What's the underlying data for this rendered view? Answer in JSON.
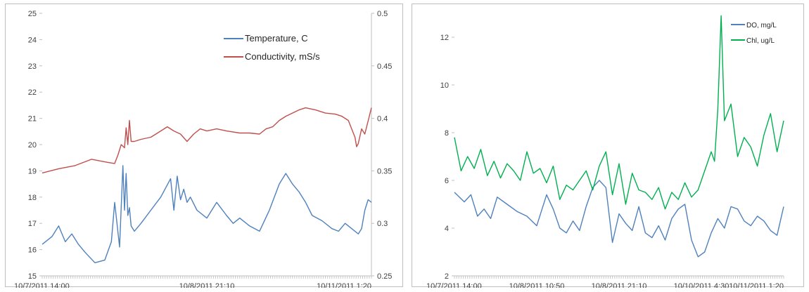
{
  "chart_data": [
    {
      "type": "line",
      "title": "",
      "xlabel": "",
      "ylabel": "",
      "x_tick_labels": [
        "10/7/2011 14:00",
        "10/8/2011 21:10",
        "10/11/2011 1:20"
      ],
      "ylim": [
        15,
        25
      ],
      "yticks": [
        "15",
        "16",
        "17",
        "18",
        "19",
        "20",
        "21",
        "22",
        "23",
        "24",
        "25"
      ],
      "y2lim": [
        0.25,
        0.5
      ],
      "y2ticks": [
        "0.25",
        "0.3",
        "0.35",
        "0.4",
        "0.45",
        "0.5"
      ],
      "legend": "top-right",
      "grid": false,
      "series": [
        {
          "name": "Temperature, C",
          "axis": "left",
          "color": "#4f81bd",
          "x": [
            0,
            0.03,
            0.05,
            0.07,
            0.09,
            0.11,
            0.13,
            0.16,
            0.19,
            0.21,
            0.22,
            0.235,
            0.245,
            0.25,
            0.255,
            0.26,
            0.265,
            0.27,
            0.28,
            0.3,
            0.33,
            0.36,
            0.39,
            0.4,
            0.41,
            0.42,
            0.43,
            0.44,
            0.45,
            0.47,
            0.5,
            0.53,
            0.56,
            0.58,
            0.6,
            0.63,
            0.66,
            0.69,
            0.72,
            0.74,
            0.76,
            0.78,
            0.8,
            0.82,
            0.85,
            0.88,
            0.9,
            0.92,
            0.94,
            0.96,
            0.97,
            0.98,
            0.99,
            1.0
          ],
          "values": [
            16.2,
            16.5,
            16.9,
            16.3,
            16.6,
            16.2,
            15.9,
            15.5,
            15.6,
            16.3,
            17.8,
            16.1,
            19.2,
            17.5,
            18.9,
            17.3,
            17.6,
            16.9,
            16.7,
            17.0,
            17.5,
            18.0,
            18.7,
            17.5,
            18.8,
            17.9,
            18.3,
            17.8,
            18.0,
            17.5,
            17.2,
            17.8,
            17.3,
            17.0,
            17.2,
            16.9,
            16.7,
            17.5,
            18.5,
            18.9,
            18.5,
            18.2,
            17.8,
            17.3,
            17.1,
            16.8,
            16.7,
            17.0,
            16.8,
            16.6,
            16.8,
            17.5,
            17.9,
            17.8
          ]
        },
        {
          "name": "Conductivity, mS/s",
          "axis": "right",
          "color": "#c0504d",
          "x": [
            0,
            0.05,
            0.1,
            0.15,
            0.2,
            0.22,
            0.23,
            0.24,
            0.25,
            0.255,
            0.26,
            0.265,
            0.27,
            0.28,
            0.3,
            0.33,
            0.36,
            0.38,
            0.4,
            0.42,
            0.44,
            0.46,
            0.48,
            0.5,
            0.53,
            0.56,
            0.6,
            0.63,
            0.66,
            0.68,
            0.7,
            0.72,
            0.74,
            0.76,
            0.78,
            0.8,
            0.83,
            0.86,
            0.89,
            0.91,
            0.93,
            0.94,
            0.95,
            0.955,
            0.96,
            0.97,
            0.98,
            1.0
          ],
          "values": [
            0.348,
            0.352,
            0.355,
            0.361,
            0.358,
            0.357,
            0.365,
            0.375,
            0.372,
            0.391,
            0.375,
            0.398,
            0.378,
            0.378,
            0.38,
            0.382,
            0.388,
            0.392,
            0.388,
            0.385,
            0.378,
            0.385,
            0.39,
            0.388,
            0.39,
            0.388,
            0.386,
            0.386,
            0.385,
            0.39,
            0.392,
            0.398,
            0.402,
            0.405,
            0.408,
            0.41,
            0.408,
            0.405,
            0.404,
            0.402,
            0.398,
            0.39,
            0.382,
            0.373,
            0.376,
            0.39,
            0.385,
            0.41
          ]
        }
      ]
    },
    {
      "type": "line",
      "title": "",
      "xlabel": "",
      "ylabel": "",
      "x_tick_labels": [
        "10/7/2011 14:00",
        "10/8/2011 10:50",
        "10/8/2011 21:10",
        "10/10/2011 4:30",
        "10/11/2011 1:20"
      ],
      "ylim": [
        2,
        13
      ],
      "yticks": [
        "2",
        "4",
        "6",
        "8",
        "10",
        "12"
      ],
      "legend": "top-right",
      "grid": false,
      "series": [
        {
          "name": "DO, mg/L",
          "color": "#4f81bd",
          "x": [
            0,
            0.03,
            0.05,
            0.07,
            0.09,
            0.11,
            0.13,
            0.16,
            0.19,
            0.22,
            0.25,
            0.28,
            0.3,
            0.32,
            0.34,
            0.36,
            0.38,
            0.4,
            0.42,
            0.44,
            0.46,
            0.48,
            0.5,
            0.52,
            0.54,
            0.56,
            0.58,
            0.6,
            0.62,
            0.64,
            0.66,
            0.68,
            0.7,
            0.72,
            0.74,
            0.76,
            0.78,
            0.8,
            0.82,
            0.84,
            0.86,
            0.88,
            0.9,
            0.92,
            0.94,
            0.96,
            0.98,
            1.0
          ],
          "values": [
            5.5,
            5.1,
            5.4,
            4.5,
            4.8,
            4.4,
            5.3,
            5.0,
            4.7,
            4.5,
            4.1,
            5.4,
            4.8,
            4.0,
            3.8,
            4.3,
            3.9,
            4.9,
            5.7,
            6.0,
            5.7,
            3.4,
            4.6,
            4.2,
            3.9,
            4.9,
            3.8,
            3.6,
            4.1,
            3.5,
            4.4,
            4.8,
            5.0,
            3.5,
            2.8,
            3.0,
            3.8,
            4.4,
            4.0,
            4.9,
            4.8,
            4.3,
            4.1,
            4.5,
            4.3,
            3.9,
            3.7,
            4.9
          ]
        },
        {
          "name": "Chl, ug/L",
          "color": "#00b050",
          "x": [
            0,
            0.02,
            0.04,
            0.06,
            0.08,
            0.1,
            0.12,
            0.14,
            0.16,
            0.18,
            0.2,
            0.22,
            0.24,
            0.26,
            0.28,
            0.3,
            0.32,
            0.34,
            0.36,
            0.38,
            0.4,
            0.42,
            0.44,
            0.46,
            0.48,
            0.5,
            0.52,
            0.54,
            0.56,
            0.58,
            0.6,
            0.62,
            0.64,
            0.66,
            0.68,
            0.7,
            0.72,
            0.74,
            0.76,
            0.78,
            0.79,
            0.8,
            0.81,
            0.82,
            0.84,
            0.86,
            0.88,
            0.9,
            0.92,
            0.94,
            0.96,
            0.98,
            1.0
          ],
          "values": [
            7.8,
            6.4,
            7.0,
            6.5,
            7.3,
            6.2,
            6.8,
            6.1,
            6.7,
            6.4,
            6.0,
            7.2,
            6.3,
            6.5,
            5.9,
            6.6,
            5.2,
            5.8,
            5.6,
            6.0,
            6.4,
            5.6,
            6.6,
            7.2,
            5.4,
            6.7,
            5.0,
            6.3,
            5.6,
            5.5,
            5.2,
            5.7,
            4.8,
            5.5,
            5.2,
            5.9,
            5.3,
            5.6,
            6.4,
            7.2,
            6.8,
            9.0,
            12.9,
            8.5,
            9.2,
            7.0,
            7.8,
            7.4,
            6.6,
            7.9,
            8.8,
            7.2,
            8.5
          ]
        }
      ]
    }
  ]
}
